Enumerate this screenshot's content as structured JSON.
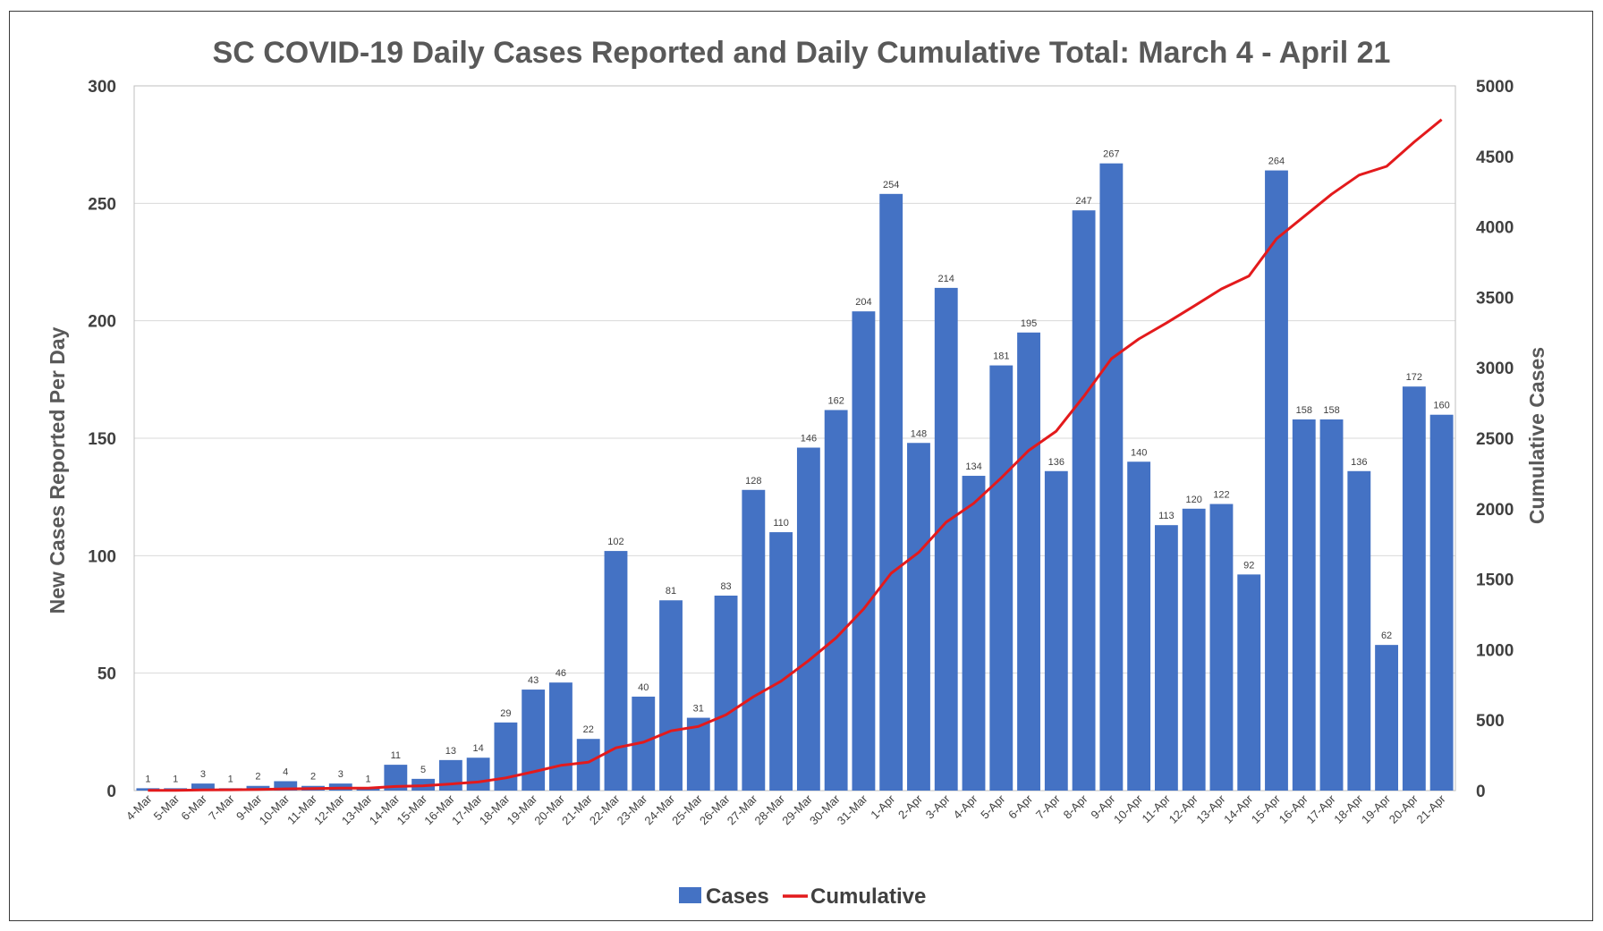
{
  "chart_data": {
    "type": "bar",
    "title": "SC COVID-19 Daily Cases Reported and Daily Cumulative Total:  March 4 - April 21",
    "ylabel": "New Cases Reported Per Day",
    "y2label": "Cumulative Cases",
    "ylim": [
      0,
      300
    ],
    "y2lim": [
      0,
      5000
    ],
    "yticks": [
      "0",
      "50",
      "100",
      "150",
      "200",
      "250",
      "300"
    ],
    "y2ticks": [
      "0",
      "500",
      "1000",
      "1500",
      "2000",
      "2500",
      "3000",
      "3500",
      "4000",
      "4500",
      "5000"
    ],
    "grid": true,
    "legend_position": "bottom",
    "categories": [
      "4-Mar",
      "5-Mar",
      "6-Mar",
      "7-Mar",
      "9-Mar",
      "10-Mar",
      "11-Mar",
      "12-Mar",
      "13-Mar",
      "14-Mar",
      "15-Mar",
      "16-Mar",
      "17-Mar",
      "18-Mar",
      "19-Mar",
      "20-Mar",
      "21-Mar",
      "22-Mar",
      "23-Mar",
      "24-Mar",
      "25-Mar",
      "26-Mar",
      "27-Mar",
      "28-Mar",
      "29-Mar",
      "30-Mar",
      "31-Mar",
      "1-Apr",
      "2-Apr",
      "3-Apr",
      "4-Apr",
      "5-Apr",
      "6-Apr",
      "7-Apr",
      "8-Apr",
      "9-Apr",
      "10-Apr",
      "11-Apr",
      "12-Apr",
      "13-Apr",
      "14-Apr",
      "15-Apr",
      "16-Apr",
      "17-Apr",
      "18-Apr",
      "19-Apr",
      "20-Apr",
      "21-Apr"
    ],
    "series": [
      {
        "name": "Cases",
        "type": "bar",
        "axis": "left",
        "color": "#4472C4",
        "values": [
          1,
          1,
          3,
          1,
          2,
          4,
          2,
          3,
          1,
          11,
          5,
          13,
          14,
          29,
          43,
          46,
          22,
          102,
          40,
          81,
          31,
          83,
          128,
          110,
          146,
          162,
          204,
          254,
          148,
          214,
          134,
          181,
          195,
          136,
          247,
          267,
          140,
          113,
          120,
          122,
          92,
          264,
          158,
          158,
          136,
          62,
          172,
          160
        ]
      },
      {
        "name": "Cumulative",
        "type": "line",
        "axis": "right",
        "color": "#E31A1C",
        "values": [
          1,
          2,
          5,
          6,
          8,
          12,
          14,
          17,
          18,
          29,
          34,
          47,
          61,
          90,
          133,
          179,
          201,
          303,
          343,
          424,
          455,
          538,
          666,
          776,
          922,
          1084,
          1288,
          1542,
          1690,
          1904,
          2038,
          2219,
          2414,
          2550,
          2797,
          3064,
          3204,
          3317,
          3437,
          3559,
          3651,
          3915,
          4073,
          4231,
          4367,
          4429,
          4601,
          4761
        ]
      }
    ],
    "legend": [
      "Cases",
      "Cumulative"
    ]
  }
}
